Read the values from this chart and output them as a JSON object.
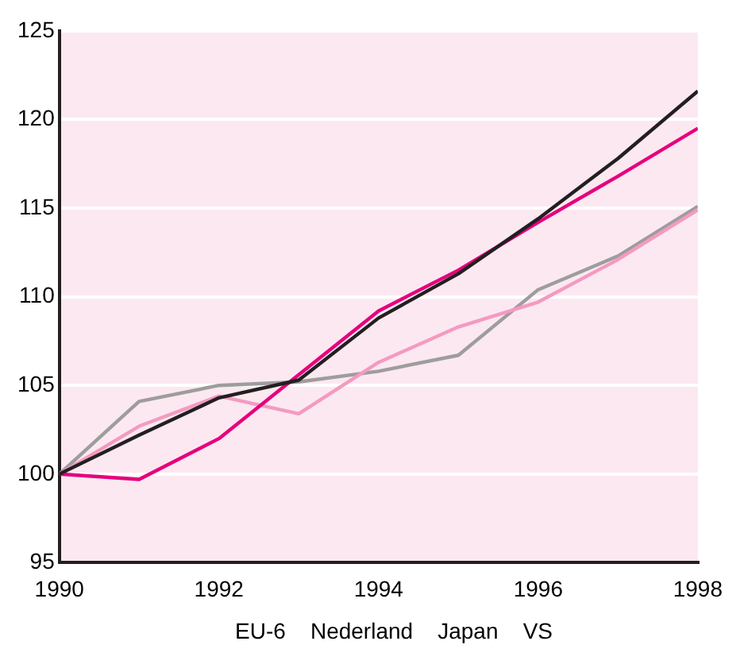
{
  "chart_data": {
    "type": "line",
    "x": [
      1990,
      1991,
      1992,
      1993,
      1994,
      1995,
      1996,
      1997,
      1998
    ],
    "series": [
      {
        "color": "#231f20",
        "values": [
          100,
          102.2,
          104.3,
          105.3,
          108.8,
          111.3,
          114.4,
          117.8,
          121.6
        ]
      },
      {
        "color": "#e6007e",
        "values": [
          100,
          99.7,
          102,
          105.6,
          109.2,
          111.5,
          114.2,
          116.8,
          119.5
        ]
      },
      {
        "color": "#f49ac1",
        "values": [
          100,
          102.7,
          104.4,
          103.4,
          106.3,
          108.3,
          109.7,
          112.1,
          114.9
        ]
      },
      {
        "color": "#9d9d9c",
        "values": [
          100,
          104.1,
          105.0,
          105.2,
          105.8,
          106.7,
          110.4,
          112.3,
          115.1
        ]
      }
    ],
    "xlim": [
      1990,
      1998
    ],
    "xticks": [
      1990,
      1992,
      1994,
      1996,
      1998
    ],
    "ylim": [
      95,
      125
    ],
    "yticks": [
      95,
      100,
      105,
      110,
      115,
      120,
      125
    ],
    "grid": "y",
    "marker": "none",
    "line_style": "solid",
    "legend": false,
    "annotations": [
      "EU-6    Nederland    Japan    VS"
    ]
  }
}
